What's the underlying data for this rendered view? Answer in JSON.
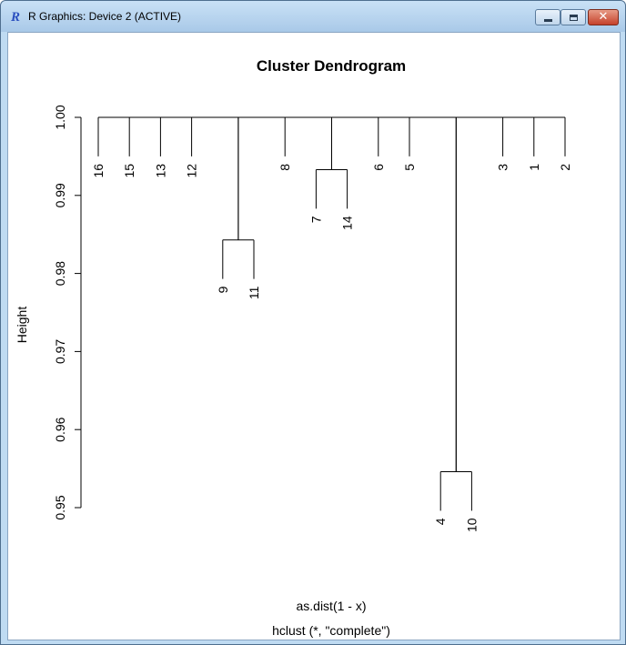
{
  "window": {
    "title": "R Graphics: Device 2 (ACTIVE)",
    "icon": "r-logo-icon",
    "controls": [
      "minimize-icon",
      "maximize-icon",
      "close-icon"
    ],
    "close_color": "#c5412b"
  },
  "chart_data": {
    "type": "dendrogram",
    "title": "Cluster Dendrogram",
    "ylabel": "Height",
    "xlabel": "as.dist(1 - x)",
    "sub": "hclust (*, \"complete\")",
    "ylim": [
      0.95,
      1.0
    ],
    "yticks": [
      "0.95",
      "0.96",
      "0.97",
      "0.98",
      "0.99",
      "1.00"
    ],
    "leaf_order": [
      "16",
      "15",
      "13",
      "12",
      "9",
      "11",
      "8",
      "7",
      "14",
      "6",
      "5",
      "4",
      "10",
      "3",
      "1",
      "2"
    ],
    "merges": [
      {
        "members": [
          "9",
          "11"
        ],
        "height": 0.9843
      },
      {
        "members": [
          "7",
          "14"
        ],
        "height": 0.9933
      },
      {
        "members": [
          "4",
          "10"
        ],
        "height": 0.9546
      },
      {
        "members": [
          "9-11",
          "4-10"
        ],
        "height": 1.0
      },
      {
        "members": [
          "16",
          "15",
          "13",
          "12",
          "9-11",
          "8",
          "7-14",
          "6",
          "5",
          "4-10",
          "3",
          "1",
          "2"
        ],
        "height": 1.0
      }
    ]
  }
}
